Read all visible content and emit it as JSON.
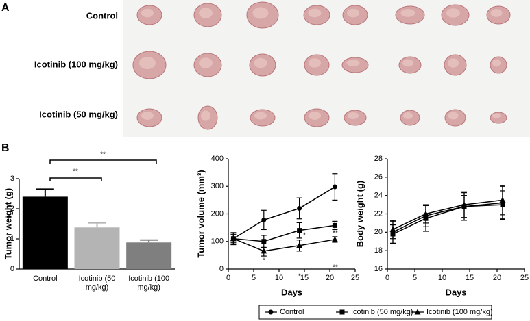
{
  "panel_labels": [
    "A",
    "B"
  ],
  "photo_rows": [
    "Control",
    "Icotinib (100 mg/kg)",
    "Icotinib (50 mg/kg)"
  ],
  "chart_data": [
    {
      "type": "bar",
      "y_label": "Tumor weight (g)",
      "categories": [
        "Control",
        "Icotinib (50 mg/kg)",
        "Icotinib (100 mg/kg)"
      ],
      "values": [
        2.4,
        1.38,
        0.88
      ],
      "errors": [
        0.25,
        0.15,
        0.08
      ],
      "colors": [
        "#000000",
        "#b4b4b4",
        "#7f7f7f"
      ],
      "ylim": [
        0,
        3
      ],
      "yticks": [
        0,
        1,
        2,
        3
      ],
      "annotations": [
        "**",
        "**"
      ]
    },
    {
      "type": "line",
      "x_label": "Days",
      "y_label": "Tumor volume (mm³)",
      "x": [
        1,
        7,
        14,
        21
      ],
      "series": [
        {
          "name": "Control",
          "color": "#000000",
          "marker": "circle",
          "values": [
            110,
            178,
            220,
            298
          ],
          "errors": [
            22,
            35,
            38,
            48
          ]
        },
        {
          "name": "Icotinib (50 mg/kg)",
          "color": "#000000",
          "marker": "square",
          "values": [
            110,
            100,
            140,
            158
          ],
          "errors": [
            20,
            22,
            28,
            15
          ]
        },
        {
          "name": "Icotinib (100 mg/kg)",
          "color": "#000000",
          "marker": "triangle",
          "values": [
            110,
            65,
            85,
            107
          ],
          "errors": [
            15,
            18,
            20,
            10
          ]
        }
      ],
      "xlim": [
        0,
        25
      ],
      "xticks": [
        0,
        5,
        10,
        15,
        20,
        25
      ],
      "ylim": [
        0,
        400
      ],
      "yticks": [
        0,
        100,
        200,
        300,
        400
      ],
      "annotations": [
        "*",
        "*",
        "*",
        "**",
        "**"
      ]
    },
    {
      "type": "line",
      "x_label": "Days",
      "y_label": "Body weight (g)",
      "x": [
        1,
        7,
        14,
        21
      ],
      "series": [
        {
          "name": "Control",
          "color": "#000000",
          "marker": "circle",
          "values": [
            20.0,
            21.8,
            22.8,
            23.2
          ],
          "errors": [
            1.2,
            1.2,
            1.5,
            1.8
          ]
        },
        {
          "name": "Icotinib (50 mg/kg)",
          "color": "#000000",
          "marker": "square",
          "values": [
            19.8,
            21.5,
            22.8,
            23.0
          ],
          "errors": [
            1.0,
            1.4,
            1.2,
            1.5
          ]
        },
        {
          "name": "Icotinib (100 mg/kg)",
          "color": "#000000",
          "marker": "triangle",
          "values": [
            20.3,
            22.0,
            23.0,
            23.5
          ],
          "errors": [
            1.0,
            1.0,
            1.4,
            1.6
          ]
        }
      ],
      "xlim": [
        0,
        25
      ],
      "xticks": [
        0,
        5,
        10,
        15,
        20,
        25
      ],
      "ylim": [
        16,
        28
      ],
      "yticks": [
        16,
        18,
        20,
        22,
        24,
        26,
        28
      ]
    }
  ]
}
